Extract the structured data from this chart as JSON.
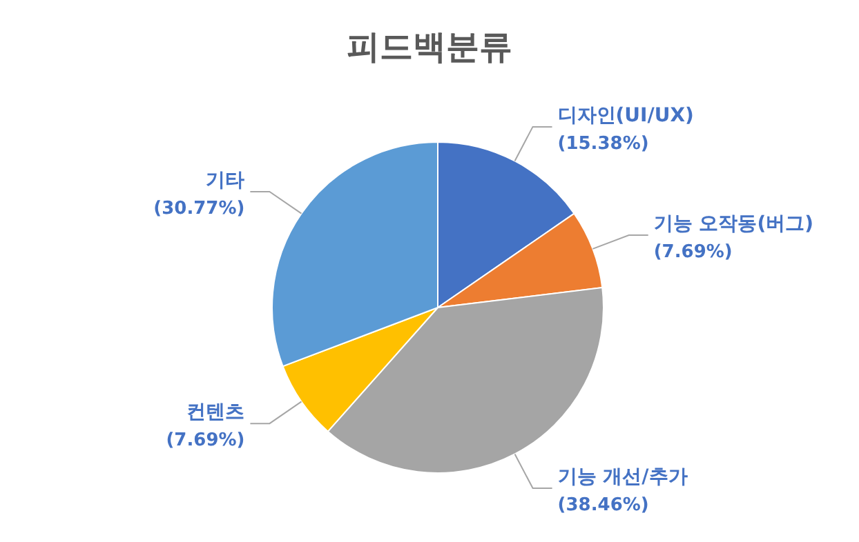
{
  "chart_data": {
    "type": "pie",
    "title": "피드백분류",
    "categories": [
      "디자인(UI/UX)",
      "기능 오작동(버그)",
      "기능 개선/추가",
      "컨텐츠",
      "기타"
    ],
    "values": [
      15.38,
      7.69,
      38.46,
      7.69,
      30.77
    ],
    "value_labels": [
      "(15.38%)",
      "(7.69%)",
      "(38.46%)",
      "(7.69%)",
      "(30.77%)"
    ],
    "colors": [
      "#4472c4",
      "#ed7d31",
      "#a5a5a5",
      "#ffc000",
      "#5b9bd5"
    ]
  }
}
